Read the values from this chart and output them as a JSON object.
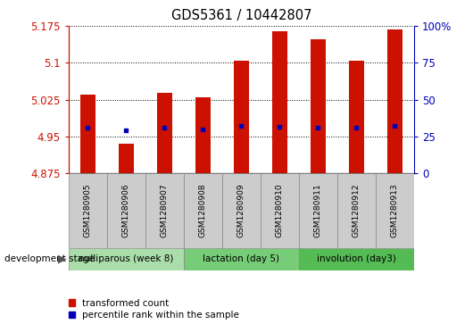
{
  "title": "GDS5361 / 10442807",
  "samples": [
    "GSM1280905",
    "GSM1280906",
    "GSM1280907",
    "GSM1280908",
    "GSM1280909",
    "GSM1280910",
    "GSM1280911",
    "GSM1280912",
    "GSM1280913"
  ],
  "bar_tops": [
    5.035,
    4.935,
    5.038,
    5.03,
    5.105,
    5.165,
    5.148,
    5.105,
    5.168
  ],
  "pct_dots": [
    4.968,
    4.962,
    4.968,
    4.965,
    4.972,
    4.97,
    4.968,
    4.968,
    4.972
  ],
  "y_min": 4.875,
  "y_max": 5.175,
  "y_ticks": [
    4.875,
    4.95,
    5.025,
    5.1,
    5.175
  ],
  "y_tick_labels": [
    "4.875",
    "4.95",
    "5.025",
    "5.1",
    "5.175"
  ],
  "right_pct_ticks": [
    0,
    25,
    50,
    75,
    100
  ],
  "right_pct_labels": [
    "0",
    "25",
    "50",
    "75",
    "100%"
  ],
  "bar_color": "#cc1100",
  "dot_color": "#0000bb",
  "sample_box_color": "#cccccc",
  "groups": [
    {
      "label": "nulliparous (week 8)",
      "start": 0,
      "end": 3,
      "color": "#aaddaa"
    },
    {
      "label": "lactation (day 5)",
      "start": 3,
      "end": 6,
      "color": "#77cc77"
    },
    {
      "label": "involution (day3)",
      "start": 6,
      "end": 9,
      "color": "#55bb55"
    }
  ],
  "dev_stage_label": "development stage",
  "legend_bar": "transformed count",
  "legend_dot": "percentile rank within the sample",
  "figsize": [
    5.3,
    3.63
  ],
  "dpi": 100
}
